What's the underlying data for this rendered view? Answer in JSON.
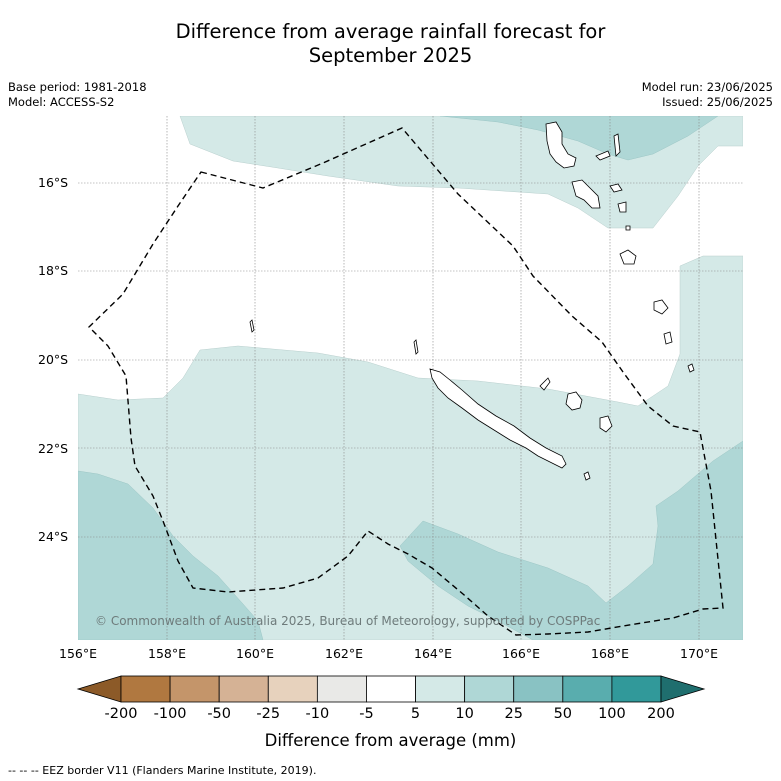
{
  "title_line1": "Difference from average rainfall forecast for",
  "title_line2": "September 2025",
  "base_period": "Base period: 1981-2018",
  "model": "Model: ACCESS-S2",
  "model_run": "Model run: 23/06/2025",
  "issued": "Issued: 25/06/2025",
  "copyright": "© Commonwealth of Australia 2025, Bureau of Meteorology, supported by COSPPac",
  "lat_labels": [
    "16°S",
    "18°S",
    "20°S",
    "22°S",
    "24°S"
  ],
  "lon_labels": [
    "156°E",
    "158°E",
    "160°E",
    "162°E",
    "164°E",
    "166°E",
    "168°E",
    "170°E"
  ],
  "colorbar": {
    "title": "Difference from average (mm)",
    "tick_labels": [
      "-200",
      "-100",
      "-50",
      "-25",
      "-10",
      "-5",
      "5",
      "10",
      "25",
      "50",
      "100",
      "200"
    ],
    "colors": [
      "#8c5a28",
      "#b07840",
      "#c4956a",
      "#d5b295",
      "#e7d2bd",
      "#e9e9e7",
      "#ffffff",
      "#d4e9e7",
      "#afd7d6",
      "#89c2c3",
      "#59adae",
      "#31999a",
      "#1f6e6e"
    ]
  },
  "footer": "-- -- -- EEZ border V11 (Flanders Marine Institute, 2019).",
  "regions": {
    "band_5_10_color": "#d4e9e7",
    "band_10_25_color": "#afd7d6",
    "eez_line_color": "#000000"
  }
}
